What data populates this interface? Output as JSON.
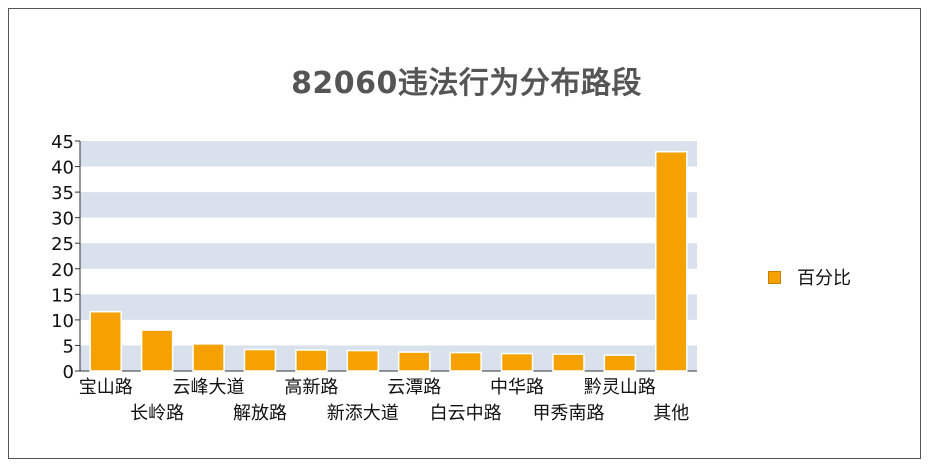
{
  "chart_data": {
    "type": "bar",
    "title": "82060违法行为分布路段",
    "categories": [
      "宝山路",
      "长岭路",
      "云峰大道",
      "解放路",
      "高新路",
      "新添大道",
      "云潭路",
      "白云中路",
      "中华路",
      "甲秀南路",
      "黔灵山路",
      "其他"
    ],
    "series": [
      {
        "name": "百分比",
        "values": [
          11.6,
          8.0,
          5.3,
          4.2,
          4.1,
          4.0,
          3.7,
          3.6,
          3.4,
          3.3,
          3.1,
          42.9
        ]
      }
    ],
    "yticks": [
      "0",
      "5",
      "10",
      "15",
      "20",
      "25",
      "30",
      "35",
      "40",
      "45"
    ],
    "ylim": [
      0,
      45
    ],
    "xlabel": "",
    "ylabel": "",
    "grid": "alternating horizontal bands",
    "legend_position": "right",
    "colors": {
      "bar": "#f5a100",
      "bar_edge": "#ffffff",
      "band": "#d9e2ec"
    }
  }
}
